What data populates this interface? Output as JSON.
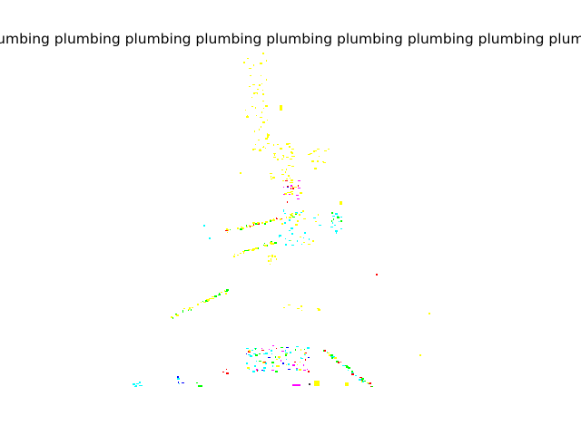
{
  "header": {
    "repeated_word": "plumbing",
    "repeat_count": 9
  },
  "colors": {
    "background": "#ffffff",
    "text": "#000000",
    "yellow": "#ffff00",
    "cyan": "#00ffff",
    "green": "#00ff00",
    "red": "#ff0000",
    "magenta": "#ff00ff",
    "blue": "#0000ff",
    "dark": "#333333"
  }
}
